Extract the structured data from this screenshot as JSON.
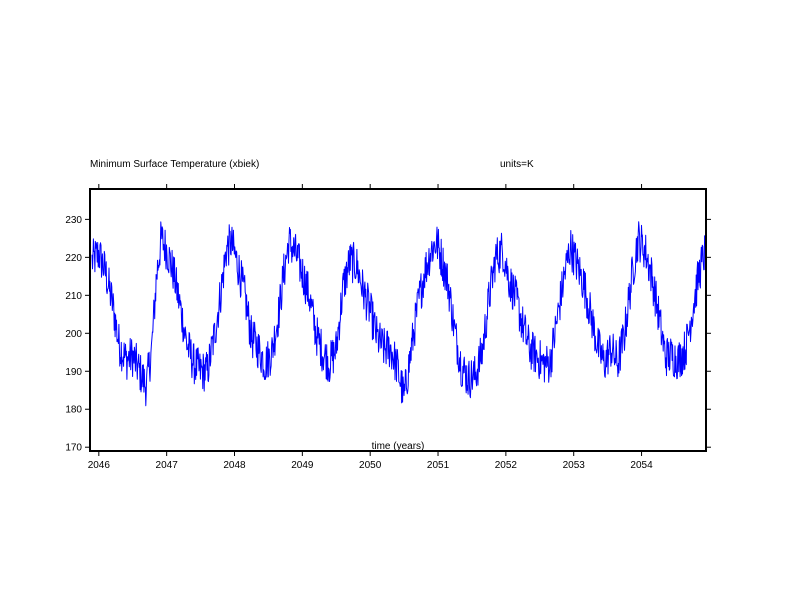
{
  "chart_data": {
    "type": "line",
    "title": "Minimum Surface Temperature (xbiek)",
    "units_label": "units=K",
    "xlabel": "time (years)",
    "ylabel": "",
    "xlim": [
      2045.87,
      2054.95
    ],
    "ylim": [
      169,
      238
    ],
    "grid": false,
    "legend": "none",
    "x_ticks": [
      2046,
      2047,
      2048,
      2049,
      2050,
      2051,
      2052,
      2053,
      2054
    ],
    "x_tick_labels": [
      "2046",
      "2047",
      "2048",
      "2049",
      "2050",
      "2051",
      "2052",
      "2053",
      "2054"
    ],
    "y_ticks": [
      170,
      180,
      190,
      200,
      210,
      220,
      230
    ],
    "y_tick_labels": [
      "170",
      "180",
      "190",
      "200",
      "210",
      "220",
      "230"
    ],
    "series": [
      {
        "color": "#0000ff",
        "x": [
          2045.9,
          2046.0,
          2046.1,
          2046.2,
          2046.3,
          2046.4,
          2046.5,
          2046.6,
          2046.7,
          2046.78,
          2046.85,
          2046.92,
          2047.0,
          2047.1,
          2047.2,
          2047.3,
          2047.4,
          2047.5,
          2047.6,
          2047.7,
          2047.8,
          2047.88,
          2047.95,
          2048.05,
          2048.15,
          2048.25,
          2048.35,
          2048.45,
          2048.55,
          2048.65,
          2048.72,
          2048.8,
          2048.9,
          2049.0,
          2049.1,
          2049.2,
          2049.3,
          2049.4,
          2049.5,
          2049.6,
          2049.7,
          2049.8,
          2049.9,
          2050.0,
          2050.1,
          2050.2,
          2050.3,
          2050.4,
          2050.5,
          2050.6,
          2050.7,
          2050.8,
          2050.9,
          2050.98,
          2051.05,
          2051.15,
          2051.25,
          2051.35,
          2051.45,
          2051.55,
          2051.65,
          2051.75,
          2051.85,
          2051.95,
          2052.05,
          2052.15,
          2052.25,
          2052.35,
          2052.45,
          2052.55,
          2052.65,
          2052.75,
          2052.85,
          2052.95,
          2053.05,
          2053.15,
          2053.25,
          2053.35,
          2053.45,
          2053.55,
          2053.65,
          2053.75,
          2053.85,
          2053.95,
          2054.05,
          2054.15,
          2054.25,
          2054.35,
          2054.45,
          2054.55,
          2054.65,
          2054.75,
          2054.85,
          2054.93
        ],
        "y": [
          219,
          221,
          216,
          208,
          197,
          193,
          194,
          190,
          186,
          196,
          215,
          225,
          222,
          216,
          207,
          197,
          192,
          190,
          190,
          199,
          211,
          222,
          224,
          218,
          210,
          199,
          196,
          192,
          195,
          205,
          215,
          224,
          221,
          216,
          210,
          200,
          195,
          192,
          196,
          212,
          219,
          218,
          211,
          206,
          199,
          196,
          196,
          191,
          183,
          195,
          207,
          216,
          222,
          224,
          220,
          213,
          200,
          191,
          188,
          189,
          195,
          209,
          220,
          222,
          214,
          209,
          202,
          196,
          194,
          192,
          192,
          203,
          214,
          223,
          218,
          213,
          205,
          197,
          192,
          196,
          192,
          200,
          214,
          225,
          222,
          215,
          205,
          194,
          194,
          193,
          196,
          206,
          216,
          221
        ]
      }
    ]
  }
}
